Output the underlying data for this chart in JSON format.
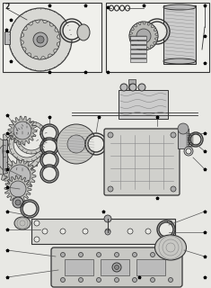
{
  "bg_color": "#e8e8e4",
  "box_color": "#f0f0ec",
  "line_color": "#333333",
  "dark_color": "#222222",
  "gray1": "#aaaaaa",
  "gray2": "#cccccc",
  "gray3": "#888888",
  "fig_width": 2.35,
  "fig_height": 3.2,
  "dpi": 100
}
